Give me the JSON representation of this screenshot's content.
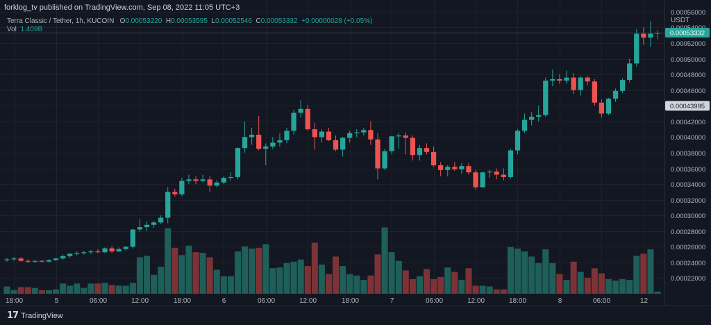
{
  "header": {
    "publisher": "forklog_tv published on TradingView.com, Sep 08, 2022 11:05 UTC+3"
  },
  "legend": {
    "symbol": "Terra Classic / Tether, 1h, KUCOIN",
    "o_label": "O",
    "o_value": "0.00053220",
    "h_label": "H",
    "h_value": "0.00053595",
    "l_label": "L",
    "l_value": "0.00052546",
    "c_label": "C",
    "c_value": "0.00053332",
    "change": "+0.00000028 (+0.05%)",
    "vol_label": "Vol",
    "vol_value": "1.409B"
  },
  "footer": {
    "logo_mark": "17",
    "logo_text": "TradingView"
  },
  "colors": {
    "up": "#26a69a",
    "down": "#ef5350",
    "vol_up": "#1e5f5a",
    "vol_down": "#7d3336",
    "grid": "#1e222d",
    "axis_text": "#b2b5be"
  },
  "chart_data": {
    "type": "candlestick",
    "title": "Terra Classic / Tether, 1h, KUCOIN",
    "currency_label": "USDT",
    "ylim": [
      0.0002,
      0.000575
    ],
    "y_ticks": [
      "0.00056000",
      "0.00054000",
      "0.00052000",
      "0.00050000",
      "0.00048000",
      "0.00046000",
      "0.00044000",
      "0.00042000",
      "0.00040000",
      "0.00038000",
      "0.00036000",
      "0.00034000",
      "0.00032000",
      "0.00030000",
      "0.00028000",
      "0.00026000",
      "0.00024000",
      "0.00022000"
    ],
    "y_tick_values": [
      0.00056,
      0.00054,
      0.00052,
      0.0005,
      0.00048,
      0.00046,
      0.00044,
      0.00042,
      0.0004,
      0.00038,
      0.00036,
      0.00034,
      0.00032,
      0.0003,
      0.00028,
      0.00026,
      0.00024,
      0.00022
    ],
    "x_ticks": [
      {
        "label": "18:00",
        "index": 1
      },
      {
        "label": "5",
        "index": 7
      },
      {
        "label": "06:00",
        "index": 13
      },
      {
        "label": "12:00",
        "index": 19
      },
      {
        "label": "18:00",
        "index": 25
      },
      {
        "label": "6",
        "index": 31
      },
      {
        "label": "06:00",
        "index": 37
      },
      {
        "label": "12:00",
        "index": 43
      },
      {
        "label": "18:00",
        "index": 49
      },
      {
        "label": "7",
        "index": 55
      },
      {
        "label": "06:00",
        "index": 61
      },
      {
        "label": "12:00",
        "index": 67
      },
      {
        "label": "18:00",
        "index": 73
      },
      {
        "label": "8",
        "index": 79
      },
      {
        "label": "06:00",
        "index": 85
      },
      {
        "label": "12",
        "index": 91
      }
    ],
    "price_labels": [
      {
        "value": 0.00053332,
        "text": "0.00053332",
        "kind": "last"
      },
      {
        "value": 0.00043995,
        "text": "0.00043995",
        "kind": "marker"
      }
    ],
    "volume_max": 1.0,
    "candles": [
      {
        "o": 0.000243,
        "h": 0.000246,
        "l": 0.000241,
        "c": 0.000244,
        "v": 0.1
      },
      {
        "o": 0.000244,
        "h": 0.000247,
        "l": 0.000242,
        "c": 0.000245,
        "v": 0.05
      },
      {
        "o": 0.000245,
        "h": 0.000247,
        "l": 0.000241,
        "c": 0.000242,
        "v": 0.09
      },
      {
        "o": 0.000242,
        "h": 0.000244,
        "l": 0.000239,
        "c": 0.000241,
        "v": 0.09
      },
      {
        "o": 0.000241,
        "h": 0.000243,
        "l": 0.000239,
        "c": 0.000242,
        "v": 0.08
      },
      {
        "o": 0.000242,
        "h": 0.000243,
        "l": 0.00024,
        "c": 0.000241,
        "v": 0.05
      },
      {
        "o": 0.000241,
        "h": 0.000244,
        "l": 0.00024,
        "c": 0.000243,
        "v": 0.05
      },
      {
        "o": 0.000243,
        "h": 0.000246,
        "l": 0.000242,
        "c": 0.000245,
        "v": 0.06
      },
      {
        "o": 0.000245,
        "h": 0.00025,
        "l": 0.000243,
        "c": 0.000248,
        "v": 0.14
      },
      {
        "o": 0.000248,
        "h": 0.000252,
        "l": 0.000246,
        "c": 0.000251,
        "v": 0.11
      },
      {
        "o": 0.000251,
        "h": 0.000254,
        "l": 0.000249,
        "c": 0.000252,
        "v": 0.14
      },
      {
        "o": 0.000252,
        "h": 0.000255,
        "l": 0.00025,
        "c": 0.000253,
        "v": 0.08
      },
      {
        "o": 0.000253,
        "h": 0.000256,
        "l": 0.000251,
        "c": 0.000254,
        "v": 0.14
      },
      {
        "o": 0.000254,
        "h": 0.000257,
        "l": 0.000252,
        "c": 0.000253,
        "v": 0.14
      },
      {
        "o": 0.000253,
        "h": 0.000259,
        "l": 0.000252,
        "c": 0.000258,
        "v": 0.15
      },
      {
        "o": 0.000258,
        "h": 0.000261,
        "l": 0.000252,
        "c": 0.000254,
        "v": 0.12
      },
      {
        "o": 0.000254,
        "h": 0.000259,
        "l": 0.000253,
        "c": 0.000257,
        "v": 0.11
      },
      {
        "o": 0.000257,
        "h": 0.000261,
        "l": 0.000255,
        "c": 0.00026,
        "v": 0.11
      },
      {
        "o": 0.00026,
        "h": 0.000283,
        "l": 0.000258,
        "c": 0.000282,
        "v": 0.15
      },
      {
        "o": 0.000282,
        "h": 0.000295,
        "l": 0.000279,
        "c": 0.000285,
        "v": 0.5
      },
      {
        "o": 0.000285,
        "h": 0.000292,
        "l": 0.00028,
        "c": 0.000288,
        "v": 0.52
      },
      {
        "o": 0.000288,
        "h": 0.000293,
        "l": 0.000284,
        "c": 0.000291,
        "v": 0.26
      },
      {
        "o": 0.000291,
        "h": 0.0003,
        "l": 0.000289,
        "c": 0.000297,
        "v": 0.37
      },
      {
        "o": 0.000297,
        "h": 0.000336,
        "l": 0.00029,
        "c": 0.00033,
        "v": 0.9
      },
      {
        "o": 0.00033,
        "h": 0.000334,
        "l": 0.000324,
        "c": 0.000327,
        "v": 0.63
      },
      {
        "o": 0.000327,
        "h": 0.000348,
        "l": 0.000325,
        "c": 0.000344,
        "v": 0.53
      },
      {
        "o": 0.000344,
        "h": 0.000352,
        "l": 0.00034,
        "c": 0.000346,
        "v": 0.66
      },
      {
        "o": 0.000346,
        "h": 0.00035,
        "l": 0.00034,
        "c": 0.000344,
        "v": 0.57
      },
      {
        "o": 0.000344,
        "h": 0.000352,
        "l": 0.000342,
        "c": 0.000346,
        "v": 0.56
      },
      {
        "o": 0.000346,
        "h": 0.00035,
        "l": 0.00033,
        "c": 0.000338,
        "v": 0.5
      },
      {
        "o": 0.000338,
        "h": 0.000345,
        "l": 0.000336,
        "c": 0.000342,
        "v": 0.33
      },
      {
        "o": 0.000342,
        "h": 0.00035,
        "l": 0.00034,
        "c": 0.000348,
        "v": 0.24
      },
      {
        "o": 0.000348,
        "h": 0.000355,
        "l": 0.000345,
        "c": 0.000349,
        "v": 0.24
      },
      {
        "o": 0.000349,
        "h": 0.000387,
        "l": 0.000346,
        "c": 0.000386,
        "v": 0.58
      },
      {
        "o": 0.000386,
        "h": 0.00042,
        "l": 0.00038,
        "c": 0.0004,
        "v": 0.65
      },
      {
        "o": 0.0004,
        "h": 0.000412,
        "l": 0.00039,
        "c": 0.000403,
        "v": 0.62
      },
      {
        "o": 0.000403,
        "h": 0.000427,
        "l": 0.000383,
        "c": 0.000385,
        "v": 0.63
      },
      {
        "o": 0.000385,
        "h": 0.000392,
        "l": 0.000364,
        "c": 0.000388,
        "v": 0.68
      },
      {
        "o": 0.000388,
        "h": 0.0004,
        "l": 0.000385,
        "c": 0.000393,
        "v": 0.35
      },
      {
        "o": 0.000393,
        "h": 0.000405,
        "l": 0.000388,
        "c": 0.000396,
        "v": 0.36
      },
      {
        "o": 0.000396,
        "h": 0.000412,
        "l": 0.000392,
        "c": 0.000408,
        "v": 0.42
      },
      {
        "o": 0.000408,
        "h": 0.000435,
        "l": 0.000403,
        "c": 0.000431,
        "v": 0.44
      },
      {
        "o": 0.000431,
        "h": 0.000447,
        "l": 0.000425,
        "c": 0.000436,
        "v": 0.47
      },
      {
        "o": 0.000436,
        "h": 0.000441,
        "l": 0.000408,
        "c": 0.00041,
        "v": 0.38
      },
      {
        "o": 0.00041,
        "h": 0.000418,
        "l": 0.000384,
        "c": 0.0004,
        "v": 0.7
      },
      {
        "o": 0.0004,
        "h": 0.00041,
        "l": 0.000393,
        "c": 0.000407,
        "v": 0.4
      },
      {
        "o": 0.000407,
        "h": 0.000412,
        "l": 0.000395,
        "c": 0.000396,
        "v": 0.27
      },
      {
        "o": 0.000396,
        "h": 0.000402,
        "l": 0.000382,
        "c": 0.000384,
        "v": 0.51
      },
      {
        "o": 0.000384,
        "h": 0.0004,
        "l": 0.000375,
        "c": 0.000399,
        "v": 0.38
      },
      {
        "o": 0.000399,
        "h": 0.000408,
        "l": 0.000393,
        "c": 0.000405,
        "v": 0.27
      },
      {
        "o": 0.000405,
        "h": 0.00041,
        "l": 0.0004,
        "c": 0.000406,
        "v": 0.25
      },
      {
        "o": 0.000406,
        "h": 0.000412,
        "l": 0.000402,
        "c": 0.000409,
        "v": 0.19
      },
      {
        "o": 0.000409,
        "h": 0.00042,
        "l": 0.00039,
        "c": 0.000397,
        "v": 0.25
      },
      {
        "o": 0.000397,
        "h": 0.000405,
        "l": 0.000346,
        "c": 0.00036,
        "v": 0.54
      },
      {
        "o": 0.00036,
        "h": 0.000385,
        "l": 0.000358,
        "c": 0.000382,
        "v": 0.91
      },
      {
        "o": 0.000382,
        "h": 0.000402,
        "l": 0.000378,
        "c": 0.000401,
        "v": 0.57
      },
      {
        "o": 0.000401,
        "h": 0.000405,
        "l": 0.000385,
        "c": 0.000402,
        "v": 0.45
      },
      {
        "o": 0.000402,
        "h": 0.000406,
        "l": 0.000378,
        "c": 0.000399,
        "v": 0.32
      },
      {
        "o": 0.000399,
        "h": 0.000402,
        "l": 0.00037,
        "c": 0.000377,
        "v": 0.2
      },
      {
        "o": 0.000377,
        "h": 0.00039,
        "l": 0.00037,
        "c": 0.000386,
        "v": 0.24
      },
      {
        "o": 0.000386,
        "h": 0.000392,
        "l": 0.000378,
        "c": 0.000381,
        "v": 0.34
      },
      {
        "o": 0.000381,
        "h": 0.000388,
        "l": 0.000362,
        "c": 0.000364,
        "v": 0.2
      },
      {
        "o": 0.000364,
        "h": 0.000368,
        "l": 0.00035,
        "c": 0.000358,
        "v": 0.23
      },
      {
        "o": 0.000358,
        "h": 0.000364,
        "l": 0.00035,
        "c": 0.000362,
        "v": 0.36
      },
      {
        "o": 0.000362,
        "h": 0.000368,
        "l": 0.000357,
        "c": 0.000359,
        "v": 0.3
      },
      {
        "o": 0.000359,
        "h": 0.000367,
        "l": 0.000353,
        "c": 0.000363,
        "v": 0.19
      },
      {
        "o": 0.000363,
        "h": 0.000367,
        "l": 0.000352,
        "c": 0.000355,
        "v": 0.35
      },
      {
        "o": 0.000355,
        "h": 0.000358,
        "l": 0.000333,
        "c": 0.000336,
        "v": 0.11
      },
      {
        "o": 0.000336,
        "h": 0.000356,
        "l": 0.000335,
        "c": 0.000355,
        "v": 0.11
      },
      {
        "o": 0.000355,
        "h": 0.000358,
        "l": 0.000348,
        "c": 0.000356,
        "v": 0.1
      },
      {
        "o": 0.000356,
        "h": 0.00036,
        "l": 0.000346,
        "c": 0.000352,
        "v": 0.06
      },
      {
        "o": 0.000352,
        "h": 0.00036,
        "l": 0.000345,
        "c": 0.000349,
        "v": 0.06
      },
      {
        "o": 0.000349,
        "h": 0.000385,
        "l": 0.000347,
        "c": 0.000383,
        "v": 0.64
      },
      {
        "o": 0.000383,
        "h": 0.00041,
        "l": 0.000378,
        "c": 0.000408,
        "v": 0.62
      },
      {
        "o": 0.000408,
        "h": 0.00043,
        "l": 0.000405,
        "c": 0.000422,
        "v": 0.58
      },
      {
        "o": 0.000422,
        "h": 0.000432,
        "l": 0.000415,
        "c": 0.000426,
        "v": 0.51
      },
      {
        "o": 0.000426,
        "h": 0.00044,
        "l": 0.00042,
        "c": 0.000428,
        "v": 0.42
      },
      {
        "o": 0.000428,
        "h": 0.000476,
        "l": 0.000426,
        "c": 0.000472,
        "v": 0.61
      },
      {
        "o": 0.000472,
        "h": 0.000486,
        "l": 0.000465,
        "c": 0.000474,
        "v": 0.42
      },
      {
        "o": 0.000474,
        "h": 0.00048,
        "l": 0.000468,
        "c": 0.000472,
        "v": 0.27
      },
      {
        "o": 0.000472,
        "h": 0.000485,
        "l": 0.000468,
        "c": 0.000476,
        "v": 0.19
      },
      {
        "o": 0.000476,
        "h": 0.000482,
        "l": 0.000455,
        "c": 0.00046,
        "v": 0.44
      },
      {
        "o": 0.00046,
        "h": 0.000478,
        "l": 0.000453,
        "c": 0.000476,
        "v": 0.3
      },
      {
        "o": 0.000476,
        "h": 0.000478,
        "l": 0.000466,
        "c": 0.000471,
        "v": 0.22
      },
      {
        "o": 0.000471,
        "h": 0.000474,
        "l": 0.00044,
        "c": 0.000444,
        "v": 0.35
      },
      {
        "o": 0.000444,
        "h": 0.000448,
        "l": 0.000425,
        "c": 0.00043,
        "v": 0.28
      },
      {
        "o": 0.00043,
        "h": 0.00045,
        "l": 0.000428,
        "c": 0.000449,
        "v": 0.2
      },
      {
        "o": 0.000449,
        "h": 0.000462,
        "l": 0.000445,
        "c": 0.000459,
        "v": 0.18
      },
      {
        "o": 0.000459,
        "h": 0.000475,
        "l": 0.000456,
        "c": 0.000473,
        "v": 0.2
      },
      {
        "o": 0.000473,
        "h": 0.0005,
        "l": 0.00047,
        "c": 0.000494,
        "v": 0.19
      },
      {
        "o": 0.000494,
        "h": 0.000538,
        "l": 0.00049,
        "c": 0.000532,
        "v": 0.52
      },
      {
        "o": 0.000532,
        "h": 0.00054,
        "l": 0.000518,
        "c": 0.000527,
        "v": 0.55
      },
      {
        "o": 0.000527,
        "h": 0.000548,
        "l": 0.000515,
        "c": 0.000532,
        "v": 0.61
      },
      {
        "o": 0.000532,
        "h": 0.000536,
        "l": 0.000525,
        "c": 0.000533,
        "v": 0.03
      }
    ]
  }
}
